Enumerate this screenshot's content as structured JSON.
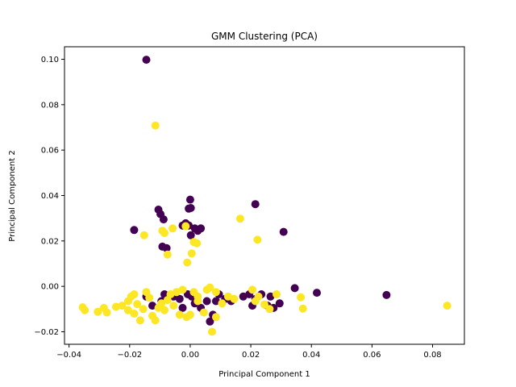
{
  "chart_data": {
    "type": "scatter",
    "title": "GMM Clustering (PCA)",
    "xlabel": "Principal Component 1",
    "ylabel": "Principal Component 2",
    "xlim": [
      -0.0415,
      0.0905
    ],
    "ylim": [
      -0.0255,
      0.1055
    ],
    "xticks": [
      -0.04,
      -0.02,
      0.0,
      0.02,
      0.04,
      0.06,
      0.08
    ],
    "xtick_labels": [
      "−0.04",
      "−0.02",
      "0.00",
      "0.02",
      "0.04",
      "0.06",
      "0.08"
    ],
    "yticks": [
      -0.02,
      0.0,
      0.02,
      0.04,
      0.06,
      0.08,
      0.1
    ],
    "ytick_labels": [
      "−0.02",
      "0.00",
      "0.02",
      "0.04",
      "0.06",
      "0.08",
      "0.10"
    ],
    "grid": false,
    "series": [
      {
        "color": "#440154",
        "points": [
          [
            -0.0145,
            0.0998
          ],
          [
            -0.0185,
            0.0248
          ],
          [
            -0.0105,
            0.0338
          ],
          [
            -0.0098,
            0.0318
          ],
          [
            -0.0088,
            0.0295
          ],
          [
            -0.0092,
            0.0175
          ],
          [
            -0.0078,
            0.0168
          ],
          [
            -0.0025,
            0.0268
          ],
          [
            -0.0015,
            0.0278
          ],
          [
            -0.0005,
            0.0268
          ],
          [
            0.0,
            0.0382
          ],
          [
            0.0002,
            0.0345
          ],
          [
            -0.0005,
            0.0342
          ],
          [
            0.0002,
            0.0225
          ],
          [
            0.0015,
            0.0255
          ],
          [
            0.0025,
            0.0245
          ],
          [
            0.0035,
            0.0255
          ],
          [
            0.0215,
            0.0362
          ],
          [
            0.0308,
            0.024
          ],
          [
            -0.0145,
            -0.0045
          ],
          [
            -0.0125,
            -0.0085
          ],
          [
            -0.0095,
            -0.0065
          ],
          [
            -0.0085,
            -0.0035
          ],
          [
            -0.0055,
            -0.0045
          ],
          [
            -0.0035,
            -0.0055
          ],
          [
            -0.0025,
            -0.0095
          ],
          [
            -0.0008,
            -0.0035
          ],
          [
            0.0005,
            -0.0045
          ],
          [
            0.0015,
            -0.0075
          ],
          [
            0.0035,
            -0.0095
          ],
          [
            0.0055,
            -0.0065
          ],
          [
            0.0065,
            -0.0155
          ],
          [
            0.0085,
            -0.0065
          ],
          [
            0.0095,
            -0.0035
          ],
          [
            0.0115,
            -0.0055
          ],
          [
            0.0135,
            -0.0065
          ],
          [
            0.0175,
            -0.0045
          ],
          [
            0.0195,
            -0.0035
          ],
          [
            0.0215,
            -0.0055
          ],
          [
            0.0235,
            -0.0035
          ],
          [
            0.0255,
            -0.0085
          ],
          [
            0.0265,
            -0.0045
          ],
          [
            0.0275,
            -0.0095
          ],
          [
            0.0295,
            -0.0075
          ],
          [
            0.0345,
            -0.0008
          ],
          [
            0.0418,
            -0.0028
          ],
          [
            0.0648,
            -0.0038
          ],
          [
            0.0205,
            -0.0085
          ],
          [
            0.0075,
            -0.0125
          ]
        ]
      },
      {
        "color": "#fde725",
        "points": [
          [
            -0.0115,
            0.0708
          ],
          [
            -0.0152,
            0.0225
          ],
          [
            -0.0092,
            0.0245
          ],
          [
            -0.0085,
            0.0235
          ],
          [
            -0.0075,
            0.014
          ],
          [
            -0.0058,
            0.0255
          ],
          [
            -0.001,
            0.0105
          ],
          [
            0.0005,
            0.0145
          ],
          [
            0.0012,
            0.0195
          ],
          [
            0.0022,
            0.019
          ],
          [
            -0.0015,
            0.0265
          ],
          [
            0.0165,
            0.0298
          ],
          [
            0.0222,
            0.0205
          ],
          [
            -0.0355,
            -0.0092
          ],
          [
            -0.0348,
            -0.0105
          ],
          [
            -0.0305,
            -0.0112
          ],
          [
            -0.0285,
            -0.0095
          ],
          [
            -0.0275,
            -0.0115
          ],
          [
            -0.0245,
            -0.009
          ],
          [
            -0.0225,
            -0.0085
          ],
          [
            -0.0205,
            -0.0105
          ],
          [
            -0.0195,
            -0.0045
          ],
          [
            -0.0185,
            -0.012
          ],
          [
            -0.0175,
            -0.0078
          ],
          [
            -0.0165,
            -0.015
          ],
          [
            -0.0155,
            -0.01
          ],
          [
            -0.0135,
            -0.005
          ],
          [
            -0.0125,
            -0.013
          ],
          [
            -0.0115,
            -0.015
          ],
          [
            -0.0105,
            -0.0095
          ],
          [
            -0.0095,
            -0.0075
          ],
          [
            -0.0075,
            -0.006
          ],
          [
            -0.0065,
            -0.0035
          ],
          [
            -0.0045,
            -0.0025
          ],
          [
            -0.0035,
            -0.0125
          ],
          [
            -0.0025,
            -0.0015
          ],
          [
            -0.0012,
            -0.0135
          ],
          [
            0.0,
            -0.0125
          ],
          [
            0.0012,
            -0.0025
          ],
          [
            0.0025,
            -0.0065
          ],
          [
            0.0045,
            -0.0115
          ],
          [
            0.0055,
            -0.0015
          ],
          [
            0.0065,
            -0.0005
          ],
          [
            0.0072,
            -0.02
          ],
          [
            0.0085,
            -0.0135
          ],
          [
            0.0105,
            -0.0075
          ],
          [
            0.0125,
            -0.0045
          ],
          [
            0.0145,
            -0.0055
          ],
          [
            0.0205,
            -0.0015
          ],
          [
            0.0215,
            -0.0065
          ],
          [
            0.0225,
            -0.0045
          ],
          [
            0.0245,
            -0.008
          ],
          [
            0.0262,
            -0.01
          ],
          [
            0.0285,
            -0.0035
          ],
          [
            0.0365,
            -0.0048
          ],
          [
            0.0372,
            -0.0098
          ],
          [
            0.0848,
            -0.0085
          ],
          [
            -0.0205,
            -0.0065
          ],
          [
            -0.0185,
            -0.0035
          ],
          [
            -0.0145,
            -0.0025
          ],
          [
            -0.0055,
            -0.0085
          ],
          [
            0.0085,
            -0.0025
          ],
          [
            0.0025,
            -0.0045
          ],
          [
            -0.0085,
            -0.0105
          ]
        ]
      }
    ]
  }
}
